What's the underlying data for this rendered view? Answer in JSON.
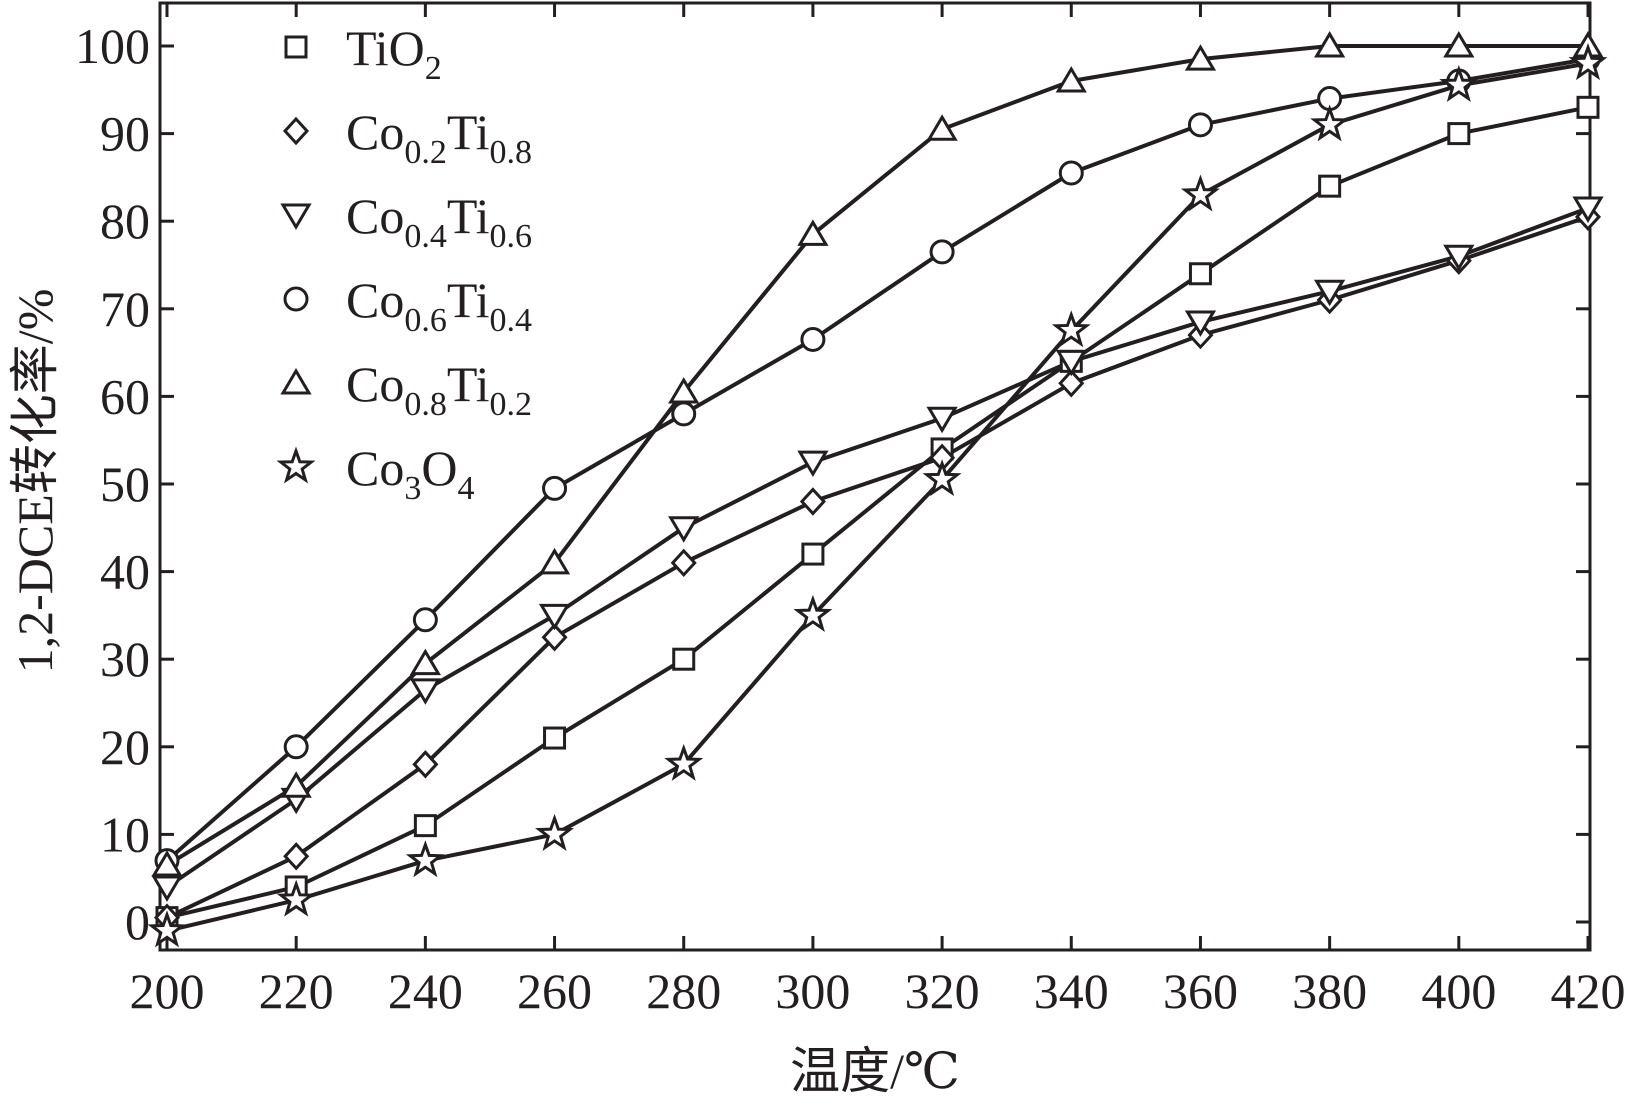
{
  "chart_data": {
    "type": "line",
    "xlabel": "温度/℃",
    "ylabel": "1,2-DCE转化率/%",
    "xlim": [
      200,
      420
    ],
    "ylim": [
      0,
      100
    ],
    "x_ticks": [
      "200",
      "220",
      "240",
      "260",
      "280",
      "300",
      "320",
      "340",
      "360",
      "380",
      "400",
      "420"
    ],
    "y_ticks": [
      "0",
      "10",
      "20",
      "30",
      "40",
      "50",
      "60",
      "70",
      "80",
      "90",
      "100"
    ],
    "grid": false,
    "legend_position": "top-left",
    "x": [
      200,
      220,
      240,
      260,
      280,
      300,
      320,
      340,
      360,
      380,
      400,
      420
    ],
    "series": [
      {
        "name": "TiO2",
        "label_main": "TiO",
        "label_sub1": "2",
        "label_mid": "",
        "label_sub2": "",
        "marker": "square",
        "values": [
          0.5,
          4,
          11,
          21,
          30,
          42,
          54,
          64,
          74,
          84,
          90,
          93
        ]
      },
      {
        "name": "Co0.2Ti0.8",
        "label_main": "Co",
        "label_sub1": "0.2",
        "label_mid": "Ti",
        "label_sub2": "0.8",
        "marker": "diamond",
        "values": [
          0.5,
          7.5,
          18,
          32.5,
          41,
          48,
          53,
          61.5,
          67,
          71,
          75.5,
          80.5
        ]
      },
      {
        "name": "Co0.4Ti0.6",
        "label_main": "Co",
        "label_sub1": "0.4",
        "label_mid": "Ti",
        "label_sub2": "0.6",
        "marker": "triangle-down",
        "values": [
          4,
          14,
          26.5,
          35,
          45,
          52.5,
          57.5,
          64,
          68.5,
          72,
          76,
          81.5
        ]
      },
      {
        "name": "Co0.6Ti0.4",
        "label_main": "Co",
        "label_sub1": "0.6",
        "label_mid": "Ti",
        "label_sub2": "0.4",
        "marker": "circle",
        "values": [
          7,
          20,
          34.5,
          49.5,
          58,
          66.5,
          76.5,
          85.5,
          91,
          94,
          96,
          98.5
        ]
      },
      {
        "name": "Co0.8Ti0.2",
        "label_main": "Co",
        "label_sub1": "0.8",
        "label_mid": "Ti",
        "label_sub2": "0.2",
        "marker": "triangle-up",
        "values": [
          6.5,
          15.5,
          29.5,
          41,
          60.5,
          78.5,
          90.5,
          96,
          98.5,
          100,
          100,
          100
        ]
      },
      {
        "name": "Co3O4",
        "label_main": "Co",
        "label_sub1": "3",
        "label_mid": "O",
        "label_sub2": "4",
        "marker": "star",
        "values": [
          -1,
          2.5,
          7,
          10,
          18,
          35,
          50.5,
          67.5,
          83,
          91,
          95.5,
          98
        ]
      }
    ]
  }
}
